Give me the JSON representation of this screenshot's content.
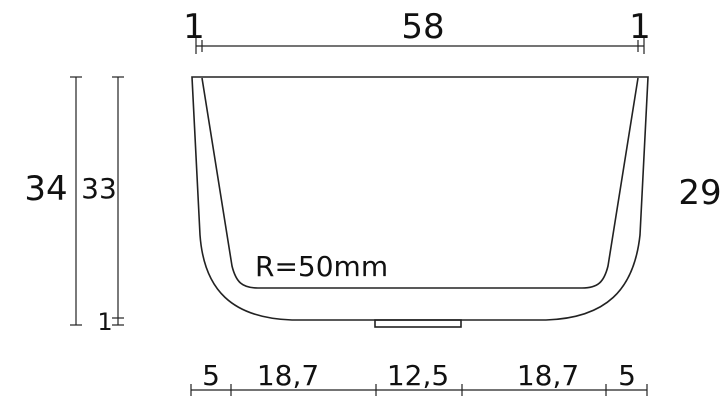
{
  "drawing": {
    "top_dims": {
      "left_edge": "1",
      "width": "58",
      "right_edge": "1"
    },
    "left_dims": {
      "total_height": "34",
      "inner_height": "33",
      "base": "1"
    },
    "right_dims": {
      "right_height": "29"
    },
    "bottom_dims": {
      "seg1": "5",
      "seg2": "18,7",
      "seg3": "12,5",
      "seg4": "18,7",
      "seg5": "5"
    },
    "annotation": {
      "radius": "R=50mm"
    }
  }
}
